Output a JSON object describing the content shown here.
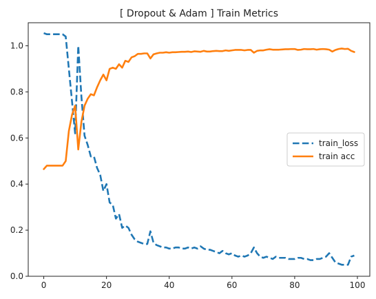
{
  "chart_data": {
    "type": "line",
    "title": "[ Dropout & Adam ]   Train Metrics",
    "xlabel": "",
    "ylabel": "",
    "xlim": [
      -4.95,
      103.95
    ],
    "ylim": [
      0.0,
      1.1
    ],
    "xticks": [
      0,
      20,
      40,
      60,
      80,
      100
    ],
    "yticks": [
      0.0,
      0.2,
      0.4,
      0.6,
      0.8,
      1.0
    ],
    "grid": false,
    "legend_position": "center-right",
    "series": [
      {
        "name": "train_loss",
        "color": "#1f77b4",
        "style": "dashed",
        "x": [
          0,
          1,
          2,
          3,
          4,
          5,
          6,
          7,
          8,
          9,
          10,
          11,
          12,
          13,
          14,
          15,
          16,
          17,
          18,
          19,
          20,
          21,
          22,
          23,
          24,
          25,
          26,
          27,
          28,
          29,
          30,
          31,
          32,
          33,
          34,
          35,
          36,
          37,
          38,
          39,
          40,
          41,
          42,
          43,
          44,
          45,
          46,
          47,
          48,
          49,
          50,
          51,
          52,
          53,
          54,
          55,
          56,
          57,
          58,
          59,
          60,
          61,
          62,
          63,
          64,
          65,
          66,
          67,
          68,
          69,
          70,
          71,
          72,
          73,
          74,
          75,
          76,
          77,
          78,
          79,
          80,
          81,
          82,
          83,
          84,
          85,
          86,
          87,
          88,
          89,
          90,
          91,
          92,
          93,
          94,
          95,
          96,
          97,
          98,
          99
        ],
        "values": [
          1.055,
          1.05,
          1.05,
          1.05,
          1.05,
          1.05,
          1.05,
          1.04,
          0.9,
          0.76,
          0.62,
          1.0,
          0.78,
          0.61,
          0.57,
          0.52,
          0.52,
          0.47,
          0.44,
          0.37,
          0.4,
          0.32,
          0.31,
          0.25,
          0.27,
          0.21,
          0.22,
          0.21,
          0.18,
          0.16,
          0.15,
          0.145,
          0.14,
          0.14,
          0.195,
          0.145,
          0.135,
          0.13,
          0.125,
          0.125,
          0.12,
          0.12,
          0.125,
          0.125,
          0.12,
          0.12,
          0.125,
          0.12,
          0.125,
          0.12,
          0.13,
          0.12,
          0.115,
          0.115,
          0.11,
          0.105,
          0.1,
          0.11,
          0.1,
          0.095,
          0.1,
          0.09,
          0.085,
          0.09,
          0.085,
          0.09,
          0.1,
          0.125,
          0.1,
          0.085,
          0.08,
          0.085,
          0.08,
          0.075,
          0.085,
          0.08,
          0.08,
          0.08,
          0.075,
          0.075,
          0.075,
          0.08,
          0.08,
          0.075,
          0.075,
          0.07,
          0.07,
          0.075,
          0.075,
          0.08,
          0.085,
          0.1,
          0.08,
          0.06,
          0.055,
          0.05,
          0.05,
          0.05,
          0.085,
          0.09
        ]
      },
      {
        "name": "train acc",
        "color": "#ff7f0e",
        "style": "solid",
        "x": [
          0,
          1,
          2,
          3,
          4,
          5,
          6,
          7,
          8,
          9,
          10,
          11,
          12,
          13,
          14,
          15,
          16,
          17,
          18,
          19,
          20,
          21,
          22,
          23,
          24,
          25,
          26,
          27,
          28,
          29,
          30,
          31,
          32,
          33,
          34,
          35,
          36,
          37,
          38,
          39,
          40,
          41,
          42,
          43,
          44,
          45,
          46,
          47,
          48,
          49,
          50,
          51,
          52,
          53,
          54,
          55,
          56,
          57,
          58,
          59,
          60,
          61,
          62,
          63,
          64,
          65,
          66,
          67,
          68,
          69,
          70,
          71,
          72,
          73,
          74,
          75,
          76,
          77,
          78,
          79,
          80,
          81,
          82,
          83,
          84,
          85,
          86,
          87,
          88,
          89,
          90,
          91,
          92,
          93,
          94,
          95,
          96,
          97,
          98,
          99
        ],
        "values": [
          0.465,
          0.48,
          0.48,
          0.48,
          0.48,
          0.48,
          0.48,
          0.5,
          0.63,
          0.7,
          0.74,
          0.55,
          0.67,
          0.74,
          0.77,
          0.79,
          0.785,
          0.82,
          0.85,
          0.875,
          0.85,
          0.9,
          0.905,
          0.9,
          0.92,
          0.905,
          0.935,
          0.93,
          0.95,
          0.955,
          0.965,
          0.965,
          0.967,
          0.967,
          0.945,
          0.963,
          0.967,
          0.97,
          0.97,
          0.972,
          0.97,
          0.972,
          0.972,
          0.973,
          0.974,
          0.974,
          0.975,
          0.973,
          0.976,
          0.975,
          0.974,
          0.978,
          0.975,
          0.975,
          0.977,
          0.978,
          0.977,
          0.977,
          0.98,
          0.978,
          0.98,
          0.982,
          0.982,
          0.982,
          0.98,
          0.982,
          0.982,
          0.97,
          0.978,
          0.98,
          0.98,
          0.983,
          0.985,
          0.983,
          0.983,
          0.983,
          0.984,
          0.985,
          0.985,
          0.986,
          0.986,
          0.982,
          0.983,
          0.986,
          0.985,
          0.985,
          0.986,
          0.983,
          0.985,
          0.986,
          0.985,
          0.983,
          0.975,
          0.982,
          0.986,
          0.988,
          0.986,
          0.987,
          0.978,
          0.973
        ]
      }
    ]
  }
}
